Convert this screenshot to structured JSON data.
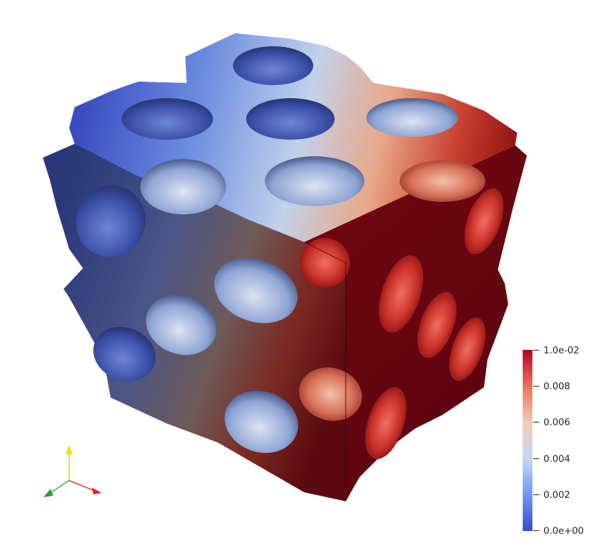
{
  "colorbar": {
    "labels": [
      "1.0e-02",
      "0.008",
      "0.006",
      "0.004",
      "0.002",
      "0.0e+00"
    ],
    "colors": [
      "#b40426",
      "#e7745b",
      "#f2cbb7",
      "#c9d7f0",
      "#7396f5",
      "#3b4cc0"
    ]
  },
  "field": {
    "min": 0.0,
    "max": 0.01
  },
  "orientation_axes": {
    "x_color": "#d62728",
    "y_color": "#e6e619",
    "z_color": "#2ca02c"
  }
}
